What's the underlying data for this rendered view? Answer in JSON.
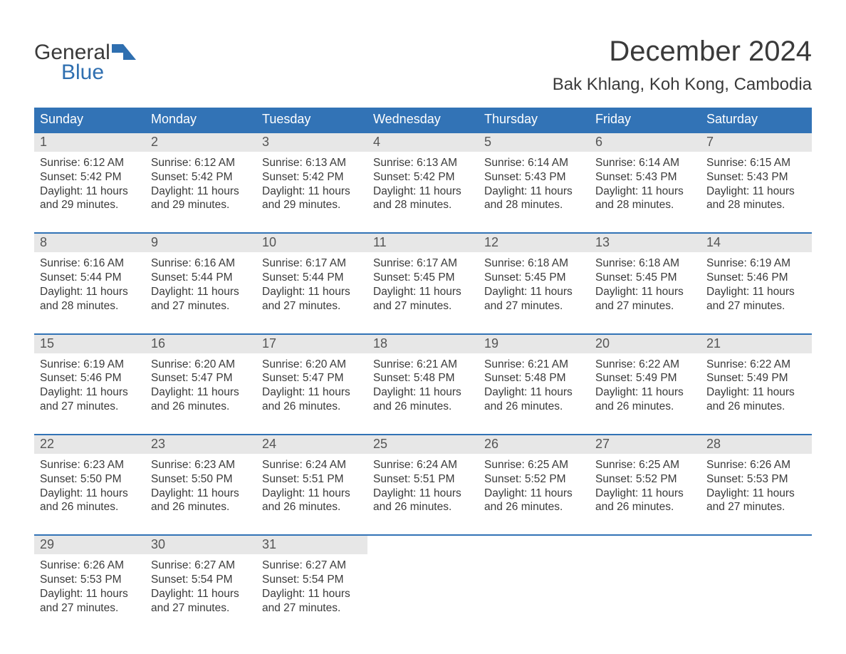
{
  "logo": {
    "word1": "General",
    "word2": "Blue",
    "icon_color": "#2f6fb0"
  },
  "title": "December 2024",
  "location": "Bak Khlang, Koh Kong, Cambodia",
  "colors": {
    "header_bg": "#3273b6",
    "header_text": "#ffffff",
    "daynum_bg": "#e7e7e7",
    "rule": "#3273b6",
    "body_text": "#3a3a3a",
    "logo_blue": "#2f6fb0",
    "page_bg": "#ffffff"
  },
  "typography": {
    "title_fontsize": 40,
    "location_fontsize": 24,
    "dow_fontsize": 18,
    "daynum_fontsize": 18,
    "body_fontsize": 15.5,
    "logo_fontsize": 30,
    "font_family": "Arial"
  },
  "days_of_week": [
    "Sunday",
    "Monday",
    "Tuesday",
    "Wednesday",
    "Thursday",
    "Friday",
    "Saturday"
  ],
  "labels": {
    "sunrise": "Sunrise:",
    "sunset": "Sunset:",
    "daylight": "Daylight:"
  },
  "weeks": [
    [
      {
        "n": "1",
        "sr": "6:12 AM",
        "ss": "5:42 PM",
        "dl1": "11 hours",
        "dl2": "and 29 minutes."
      },
      {
        "n": "2",
        "sr": "6:12 AM",
        "ss": "5:42 PM",
        "dl1": "11 hours",
        "dl2": "and 29 minutes."
      },
      {
        "n": "3",
        "sr": "6:13 AM",
        "ss": "5:42 PM",
        "dl1": "11 hours",
        "dl2": "and 29 minutes."
      },
      {
        "n": "4",
        "sr": "6:13 AM",
        "ss": "5:42 PM",
        "dl1": "11 hours",
        "dl2": "and 28 minutes."
      },
      {
        "n": "5",
        "sr": "6:14 AM",
        "ss": "5:43 PM",
        "dl1": "11 hours",
        "dl2": "and 28 minutes."
      },
      {
        "n": "6",
        "sr": "6:14 AM",
        "ss": "5:43 PM",
        "dl1": "11 hours",
        "dl2": "and 28 minutes."
      },
      {
        "n": "7",
        "sr": "6:15 AM",
        "ss": "5:43 PM",
        "dl1": "11 hours",
        "dl2": "and 28 minutes."
      }
    ],
    [
      {
        "n": "8",
        "sr": "6:16 AM",
        "ss": "5:44 PM",
        "dl1": "11 hours",
        "dl2": "and 28 minutes."
      },
      {
        "n": "9",
        "sr": "6:16 AM",
        "ss": "5:44 PM",
        "dl1": "11 hours",
        "dl2": "and 27 minutes."
      },
      {
        "n": "10",
        "sr": "6:17 AM",
        "ss": "5:44 PM",
        "dl1": "11 hours",
        "dl2": "and 27 minutes."
      },
      {
        "n": "11",
        "sr": "6:17 AM",
        "ss": "5:45 PM",
        "dl1": "11 hours",
        "dl2": "and 27 minutes."
      },
      {
        "n": "12",
        "sr": "6:18 AM",
        "ss": "5:45 PM",
        "dl1": "11 hours",
        "dl2": "and 27 minutes."
      },
      {
        "n": "13",
        "sr": "6:18 AM",
        "ss": "5:45 PM",
        "dl1": "11 hours",
        "dl2": "and 27 minutes."
      },
      {
        "n": "14",
        "sr": "6:19 AM",
        "ss": "5:46 PM",
        "dl1": "11 hours",
        "dl2": "and 27 minutes."
      }
    ],
    [
      {
        "n": "15",
        "sr": "6:19 AM",
        "ss": "5:46 PM",
        "dl1": "11 hours",
        "dl2": "and 27 minutes."
      },
      {
        "n": "16",
        "sr": "6:20 AM",
        "ss": "5:47 PM",
        "dl1": "11 hours",
        "dl2": "and 26 minutes."
      },
      {
        "n": "17",
        "sr": "6:20 AM",
        "ss": "5:47 PM",
        "dl1": "11 hours",
        "dl2": "and 26 minutes."
      },
      {
        "n": "18",
        "sr": "6:21 AM",
        "ss": "5:48 PM",
        "dl1": "11 hours",
        "dl2": "and 26 minutes."
      },
      {
        "n": "19",
        "sr": "6:21 AM",
        "ss": "5:48 PM",
        "dl1": "11 hours",
        "dl2": "and 26 minutes."
      },
      {
        "n": "20",
        "sr": "6:22 AM",
        "ss": "5:49 PM",
        "dl1": "11 hours",
        "dl2": "and 26 minutes."
      },
      {
        "n": "21",
        "sr": "6:22 AM",
        "ss": "5:49 PM",
        "dl1": "11 hours",
        "dl2": "and 26 minutes."
      }
    ],
    [
      {
        "n": "22",
        "sr": "6:23 AM",
        "ss": "5:50 PM",
        "dl1": "11 hours",
        "dl2": "and 26 minutes."
      },
      {
        "n": "23",
        "sr": "6:23 AM",
        "ss": "5:50 PM",
        "dl1": "11 hours",
        "dl2": "and 26 minutes."
      },
      {
        "n": "24",
        "sr": "6:24 AM",
        "ss": "5:51 PM",
        "dl1": "11 hours",
        "dl2": "and 26 minutes."
      },
      {
        "n": "25",
        "sr": "6:24 AM",
        "ss": "5:51 PM",
        "dl1": "11 hours",
        "dl2": "and 26 minutes."
      },
      {
        "n": "26",
        "sr": "6:25 AM",
        "ss": "5:52 PM",
        "dl1": "11 hours",
        "dl2": "and 26 minutes."
      },
      {
        "n": "27",
        "sr": "6:25 AM",
        "ss": "5:52 PM",
        "dl1": "11 hours",
        "dl2": "and 26 minutes."
      },
      {
        "n": "28",
        "sr": "6:26 AM",
        "ss": "5:53 PM",
        "dl1": "11 hours",
        "dl2": "and 27 minutes."
      }
    ],
    [
      {
        "n": "29",
        "sr": "6:26 AM",
        "ss": "5:53 PM",
        "dl1": "11 hours",
        "dl2": "and 27 minutes."
      },
      {
        "n": "30",
        "sr": "6:27 AM",
        "ss": "5:54 PM",
        "dl1": "11 hours",
        "dl2": "and 27 minutes."
      },
      {
        "n": "31",
        "sr": "6:27 AM",
        "ss": "5:54 PM",
        "dl1": "11 hours",
        "dl2": "and 27 minutes."
      },
      {
        "empty": true
      },
      {
        "empty": true
      },
      {
        "empty": true
      },
      {
        "empty": true
      }
    ]
  ]
}
